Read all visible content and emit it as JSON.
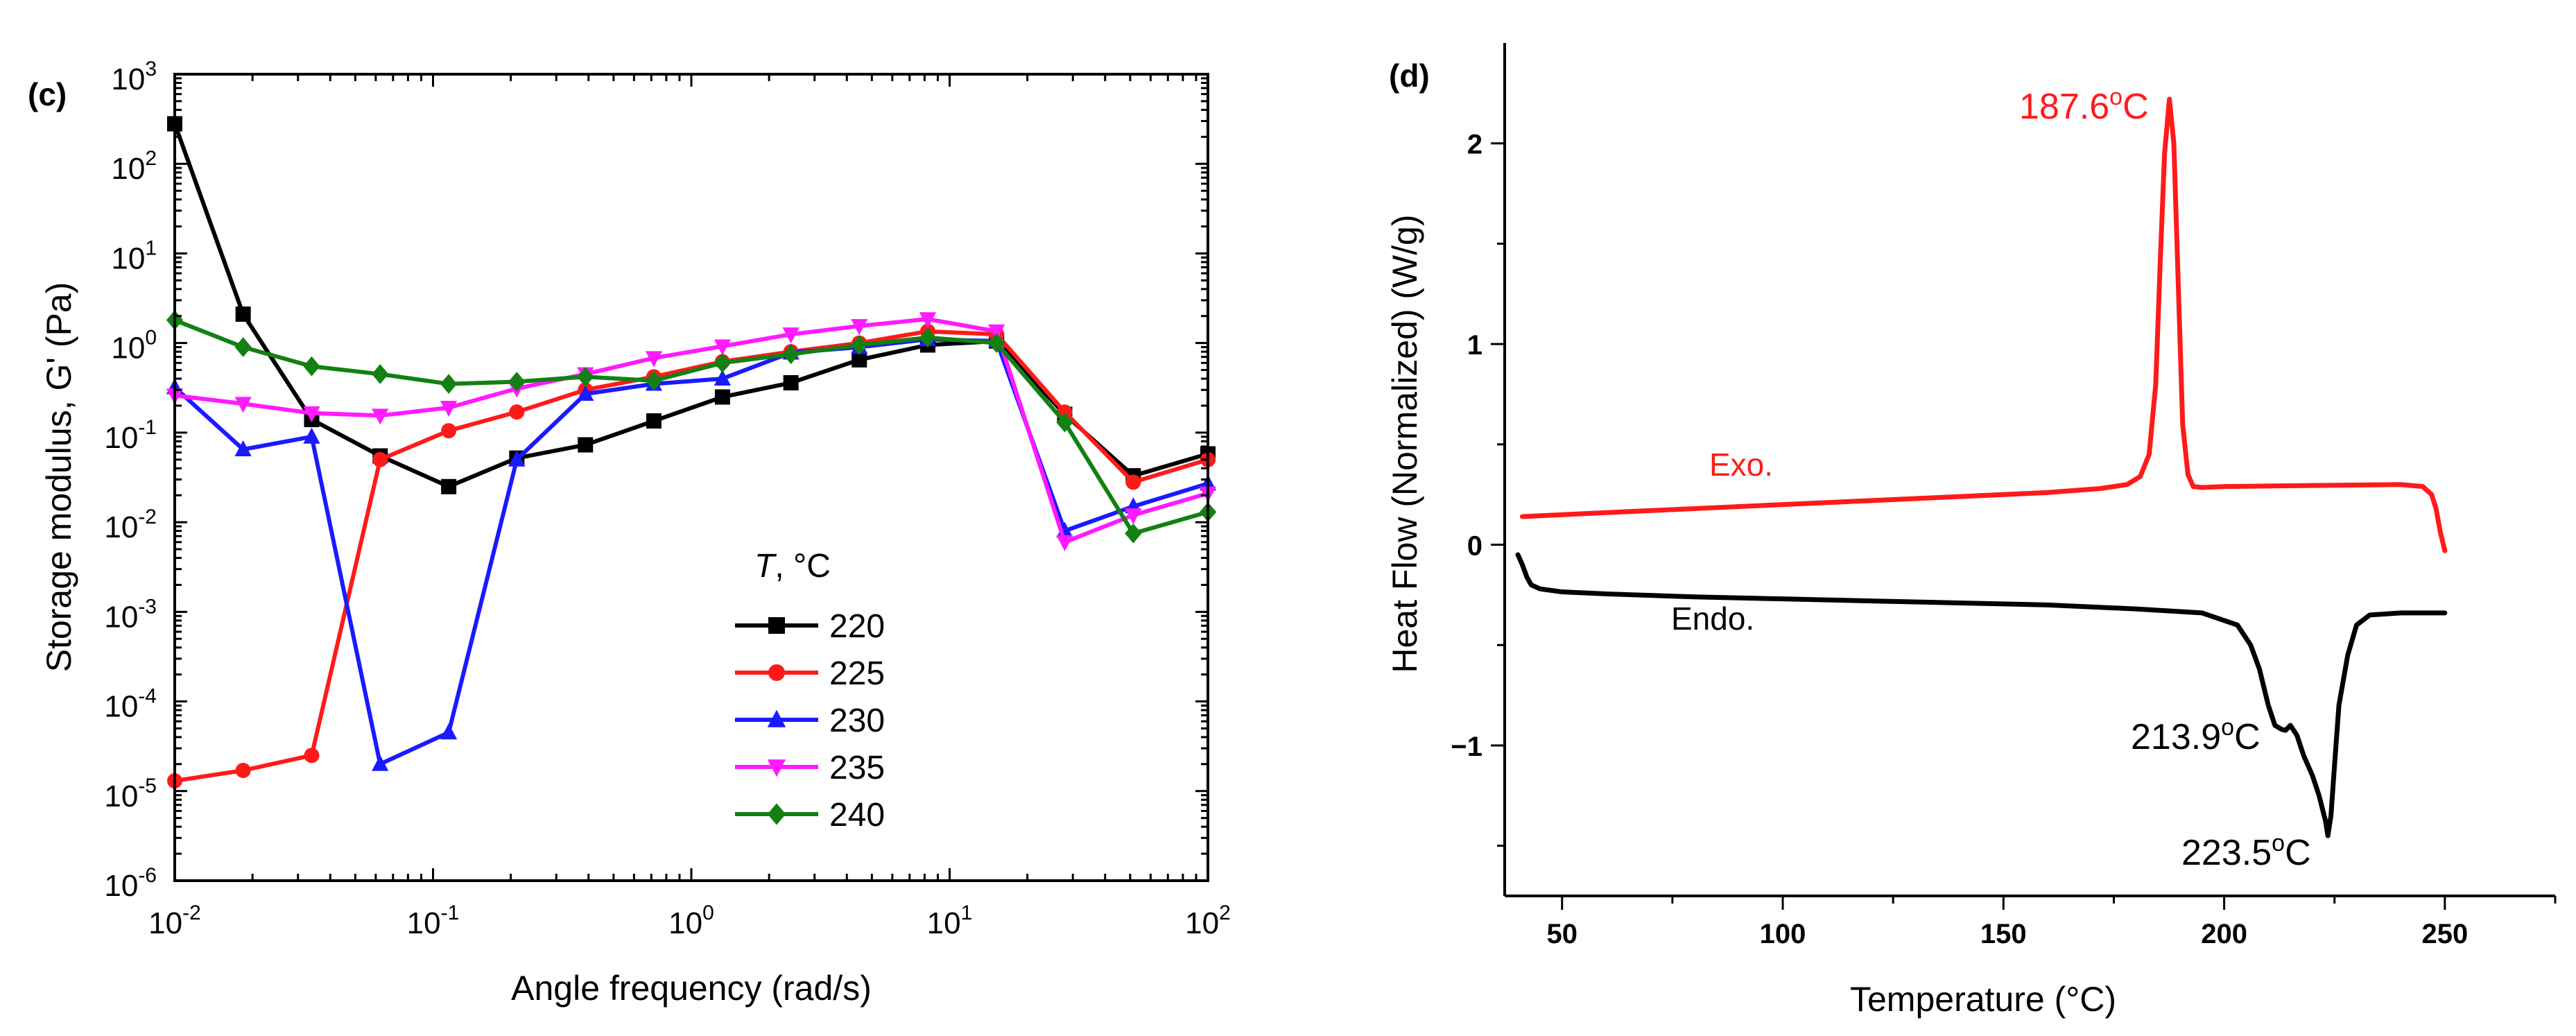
{
  "chart_data": [
    {
      "panel_label": "(c)",
      "type": "line",
      "xscale": "log",
      "yscale": "log",
      "xlabel": "Angle frequency (rad/s)",
      "ylabel": "Storage modulus, G' (Pa)",
      "xlim": [
        0.01,
        100
      ],
      "ylim": [
        1e-06,
        1000
      ],
      "x_ticks": [
        {
          "value": 0.01,
          "base": "10",
          "exp": "-2"
        },
        {
          "value": 0.1,
          "base": "10",
          "exp": "-1"
        },
        {
          "value": 1,
          "base": "10",
          "exp": "0"
        },
        {
          "value": 10,
          "base": "10",
          "exp": "1"
        },
        {
          "value": 100,
          "base": "10",
          "exp": "2"
        }
      ],
      "y_ticks": [
        {
          "value": 1e-06,
          "base": "10",
          "exp": "-6"
        },
        {
          "value": 1e-05,
          "base": "10",
          "exp": "-5"
        },
        {
          "value": 0.0001,
          "base": "10",
          "exp": "-4"
        },
        {
          "value": 0.001,
          "base": "10",
          "exp": "-3"
        },
        {
          "value": 0.01,
          "base": "10",
          "exp": "-2"
        },
        {
          "value": 0.1,
          "base": "10",
          "exp": "-1"
        },
        {
          "value": 1,
          "base": "10",
          "exp": "0"
        },
        {
          "value": 10,
          "base": "10",
          "exp": "1"
        },
        {
          "value": 100,
          "base": "10",
          "exp": "2"
        },
        {
          "value": 1000,
          "base": "10",
          "exp": "3"
        }
      ],
      "legend_title": "T, °C",
      "legend_title_italic": "T",
      "legend_title_rest": ", °C",
      "legend_position": "lower-center",
      "x": [
        0.01,
        0.0184,
        0.0339,
        0.0624,
        0.115,
        0.211,
        0.389,
        0.716,
        1.32,
        2.43,
        4.47,
        8.23,
        15.2,
        27.9,
        51.4,
        100
      ],
      "series": [
        {
          "name": "220",
          "color": "#000000",
          "marker": "square",
          "values": [
            280,
            2.1,
            0.14,
            0.055,
            0.025,
            0.052,
            0.073,
            0.135,
            0.25,
            0.36,
            0.65,
            0.95,
            1.05,
            0.16,
            0.033,
            0.058
          ]
        },
        {
          "name": "225",
          "color": "#ff1a1a",
          "marker": "circle",
          "values": [
            1.3e-05,
            1.7e-05,
            2.5e-05,
            0.05,
            0.105,
            0.17,
            0.3,
            0.42,
            0.62,
            0.8,
            1.0,
            1.35,
            1.25,
            0.17,
            0.028,
            0.05
          ]
        },
        {
          "name": "230",
          "color": "#1a1aff",
          "marker": "triangle-up",
          "values": [
            0.32,
            0.065,
            0.09,
            2e-05,
            4.5e-05,
            0.05,
            0.27,
            0.35,
            0.4,
            0.78,
            0.9,
            1.1,
            1.05,
            0.008,
            0.015,
            0.027
          ]
        },
        {
          "name": "235",
          "color": "#ff1aff",
          "marker": "triangle-down",
          "values": [
            0.26,
            0.21,
            0.165,
            0.155,
            0.19,
            0.31,
            0.45,
            0.68,
            0.92,
            1.25,
            1.55,
            1.85,
            1.35,
            0.006,
            0.012,
            0.021
          ]
        },
        {
          "name": "240",
          "color": "#138013",
          "marker": "diamond",
          "values": [
            1.8,
            0.9,
            0.55,
            0.45,
            0.35,
            0.37,
            0.42,
            0.38,
            0.6,
            0.75,
            0.95,
            1.15,
            1.0,
            0.13,
            0.0075,
            0.013
          ]
        }
      ]
    },
    {
      "panel_label": "(d)",
      "type": "line",
      "xlabel": "Temperature (°C)",
      "ylabel": "Heat Flow (Normalized) (W/g)",
      "xlim": [
        37,
        275
      ],
      "ylim": [
        -1.75,
        2.5
      ],
      "x_ticks": [
        50,
        100,
        150,
        200,
        250
      ],
      "y_ticks": [
        {
          "value": -1,
          "label": "−1"
        },
        {
          "value": 0,
          "label": "0"
        },
        {
          "value": 1,
          "label": "1"
        },
        {
          "value": 2,
          "label": "2"
        }
      ],
      "annotations": [
        {
          "text": "187.6°C",
          "base": "187.6",
          "unit": "C",
          "color": "#ff1a1a"
        },
        {
          "text": "Exo.",
          "color": "#ff1a1a"
        },
        {
          "text": "Endo.",
          "color": "#000000"
        },
        {
          "text": "213.9°C",
          "base": "213.9",
          "unit": "C",
          "color": "#000000"
        },
        {
          "text": "223.5°C",
          "base": "223.5",
          "unit": "C",
          "color": "#000000"
        }
      ],
      "series": [
        {
          "name": "Exo.",
          "color": "#ff1a1a",
          "x": [
            41,
            60,
            80,
            100,
            120,
            140,
            160,
            172,
            178,
            181,
            183,
            184.5,
            185.5,
            186.5,
            187.6,
            188.6,
            189.6,
            190.6,
            191.8,
            193,
            195,
            200,
            220,
            240,
            245,
            247,
            248,
            249,
            250
          ],
          "y": [
            0.14,
            0.16,
            0.18,
            0.2,
            0.22,
            0.24,
            0.26,
            0.28,
            0.3,
            0.34,
            0.45,
            0.8,
            1.4,
            1.95,
            2.22,
            2.0,
            1.3,
            0.6,
            0.35,
            0.29,
            0.285,
            0.29,
            0.295,
            0.3,
            0.29,
            0.25,
            0.18,
            0.06,
            -0.03
          ]
        },
        {
          "name": "Endo.",
          "color": "#000000",
          "x": [
            40,
            41,
            42,
            43,
            45,
            50,
            60,
            80,
            100,
            120,
            140,
            160,
            180,
            195,
            203,
            206,
            208,
            210,
            211.5,
            213,
            213.9,
            215,
            216.5,
            218,
            220,
            221.5,
            223,
            223.5,
            224.2,
            225,
            226,
            228,
            230,
            233,
            240,
            250
          ],
          "y": [
            -0.05,
            -0.1,
            -0.16,
            -0.2,
            -0.22,
            -0.235,
            -0.245,
            -0.26,
            -0.27,
            -0.28,
            -0.29,
            -0.3,
            -0.32,
            -0.34,
            -0.4,
            -0.5,
            -0.62,
            -0.8,
            -0.9,
            -0.92,
            -0.925,
            -0.9,
            -0.95,
            -1.05,
            -1.15,
            -1.25,
            -1.38,
            -1.45,
            -1.35,
            -1.1,
            -0.8,
            -0.55,
            -0.4,
            -0.35,
            -0.34,
            -0.34
          ]
        }
      ]
    }
  ]
}
